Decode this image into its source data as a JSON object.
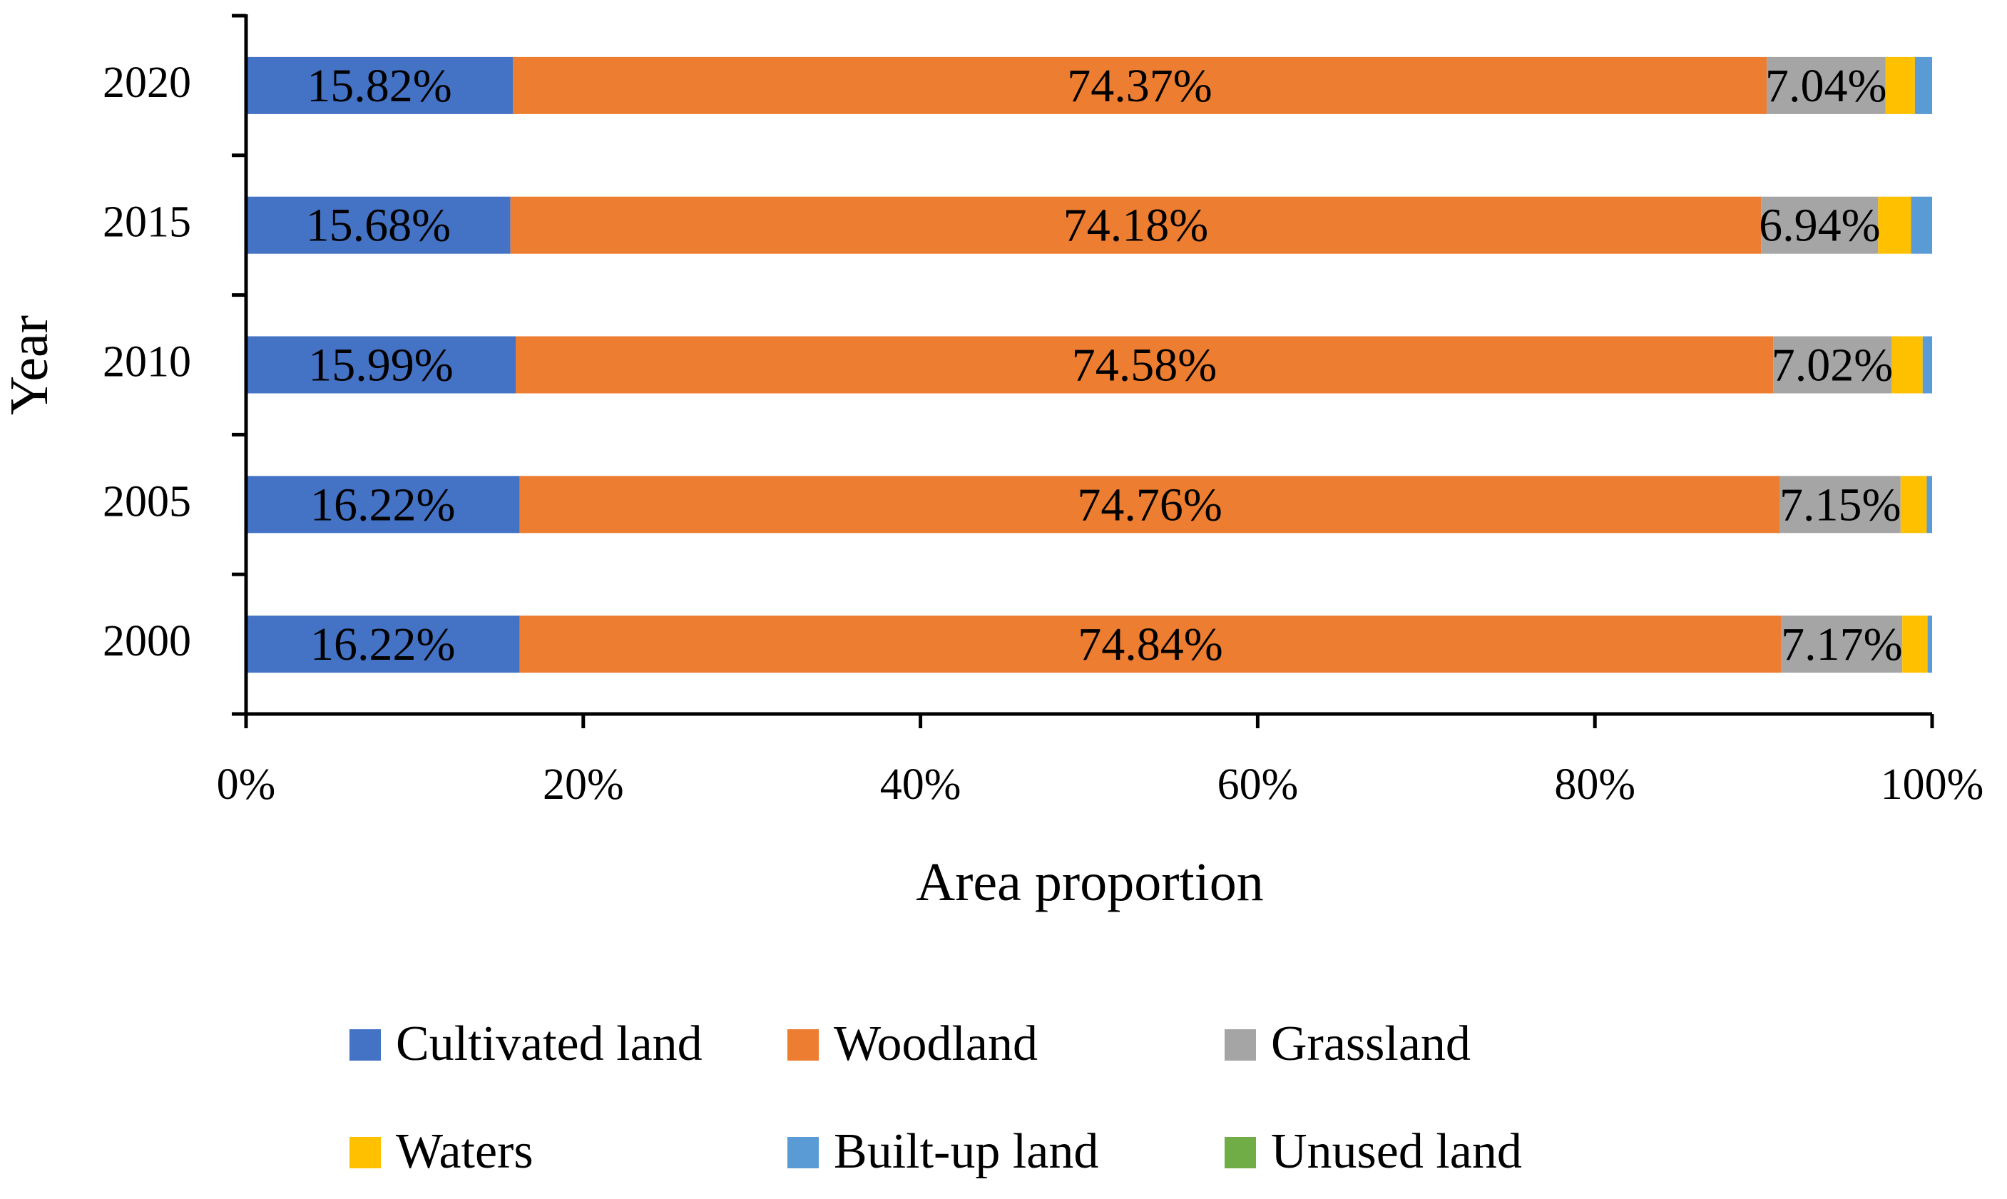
{
  "chart_data": {
    "type": "bar",
    "orientation": "horizontal",
    "stacked": "percent",
    "title": "",
    "xlabel": "Area proportion",
    "ylabel": "Year",
    "xlim": [
      0,
      100
    ],
    "x_ticks": [
      "0%",
      "20%",
      "40%",
      "60%",
      "80%",
      "100%"
    ],
    "grid": false,
    "legend_position": "bottom",
    "categories": [
      "2000",
      "2005",
      "2010",
      "2015",
      "2020"
    ],
    "series": [
      {
        "name": "Cultivated land",
        "color": "#4472C4",
        "values": [
          16.22,
          16.22,
          15.99,
          15.68,
          15.82
        ],
        "labels": [
          "16.22%",
          "16.22%",
          "15.99%",
          "15.68%",
          "15.82%"
        ]
      },
      {
        "name": "Woodland",
        "color": "#ED7D31",
        "values": [
          74.84,
          74.76,
          74.58,
          74.18,
          74.37
        ],
        "labels": [
          "74.84%",
          "74.76%",
          "74.58%",
          "74.18%",
          "74.37%"
        ]
      },
      {
        "name": "Grassland",
        "color": "#A5A5A5",
        "values": [
          7.17,
          7.15,
          7.02,
          6.94,
          7.04
        ],
        "labels": [
          "7.17%",
          "7.15%",
          "7.02%",
          "6.94%",
          "7.04%"
        ]
      },
      {
        "name": "Waters",
        "color": "#FFC000",
        "values": [
          1.5,
          1.55,
          1.85,
          1.95,
          1.75
        ],
        "labels": null
      },
      {
        "name": "Built-up land",
        "color": "#5B9BD5",
        "values": [
          0.27,
          0.32,
          0.56,
          1.25,
          1.02
        ],
        "labels": null
      },
      {
        "name": "Unused land",
        "color": "#70AD47",
        "values": [
          0.0,
          0.0,
          0.0,
          0.0,
          0.0
        ],
        "labels": null
      }
    ]
  }
}
